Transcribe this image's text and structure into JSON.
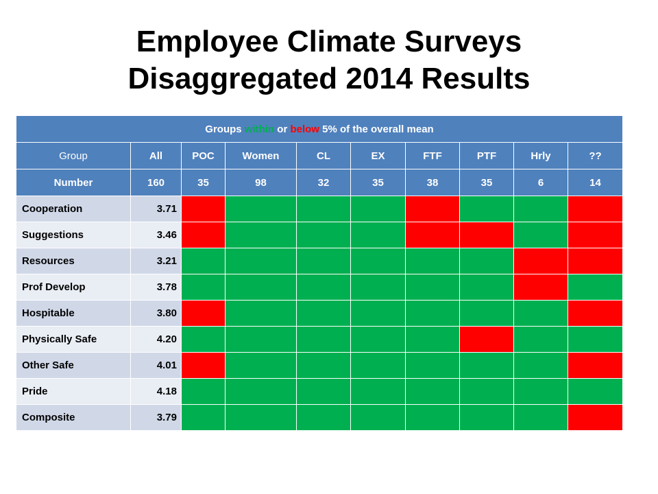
{
  "title": {
    "line1": "Employee Climate Surveys",
    "line2": "Disaggregated 2014 Results"
  },
  "banner": {
    "prefix": "Groups ",
    "within": "within",
    "or": " or ",
    "below": "below",
    "suffix": " 5% of the overall mean",
    "within_color": "#00b050",
    "below_color": "#ff0000"
  },
  "header": [
    "Group",
    "All",
    "POC",
    "Women",
    "CL",
    "EX",
    "FTF",
    "PTF",
    "Hrly",
    "??"
  ],
  "number_row": {
    "label": "Number",
    "values": [
      "160",
      "35",
      "98",
      "32",
      "35",
      "38",
      "35",
      "6",
      "14"
    ]
  },
  "status_colors": {
    "green": "#00b050",
    "red": "#ff0000"
  },
  "rows": [
    {
      "label": "Cooperation",
      "mean": "3.71",
      "status": [
        "red",
        "green",
        "green",
        "green",
        "red",
        "green",
        "green",
        "red"
      ]
    },
    {
      "label": "Suggestions",
      "mean": "3.46",
      "status": [
        "red",
        "green",
        "green",
        "green",
        "red",
        "red",
        "green",
        "red"
      ]
    },
    {
      "label": "Resources",
      "mean": "3.21",
      "status": [
        "green",
        "green",
        "green",
        "green",
        "green",
        "green",
        "red",
        "red"
      ]
    },
    {
      "label": "Prof Develop",
      "mean": "3.78",
      "status": [
        "green",
        "green",
        "green",
        "green",
        "green",
        "green",
        "red",
        "green"
      ]
    },
    {
      "label": "Hospitable",
      "mean": "3.80",
      "status": [
        "red",
        "green",
        "green",
        "green",
        "green",
        "green",
        "green",
        "red"
      ]
    },
    {
      "label": "Physically Safe",
      "mean": "4.20",
      "status": [
        "green",
        "green",
        "green",
        "green",
        "green",
        "red",
        "green",
        "green"
      ]
    },
    {
      "label": "Other Safe",
      "mean": "4.01",
      "status": [
        "red",
        "green",
        "green",
        "green",
        "green",
        "green",
        "green",
        "red"
      ]
    },
    {
      "label": "Pride",
      "mean": "4.18",
      "status": [
        "green",
        "green",
        "green",
        "green",
        "green",
        "green",
        "green",
        "green"
      ]
    },
    {
      "label": "Composite",
      "mean": "3.79",
      "status": [
        "green",
        "green",
        "green",
        "green",
        "green",
        "green",
        "green",
        "red"
      ]
    }
  ]
}
